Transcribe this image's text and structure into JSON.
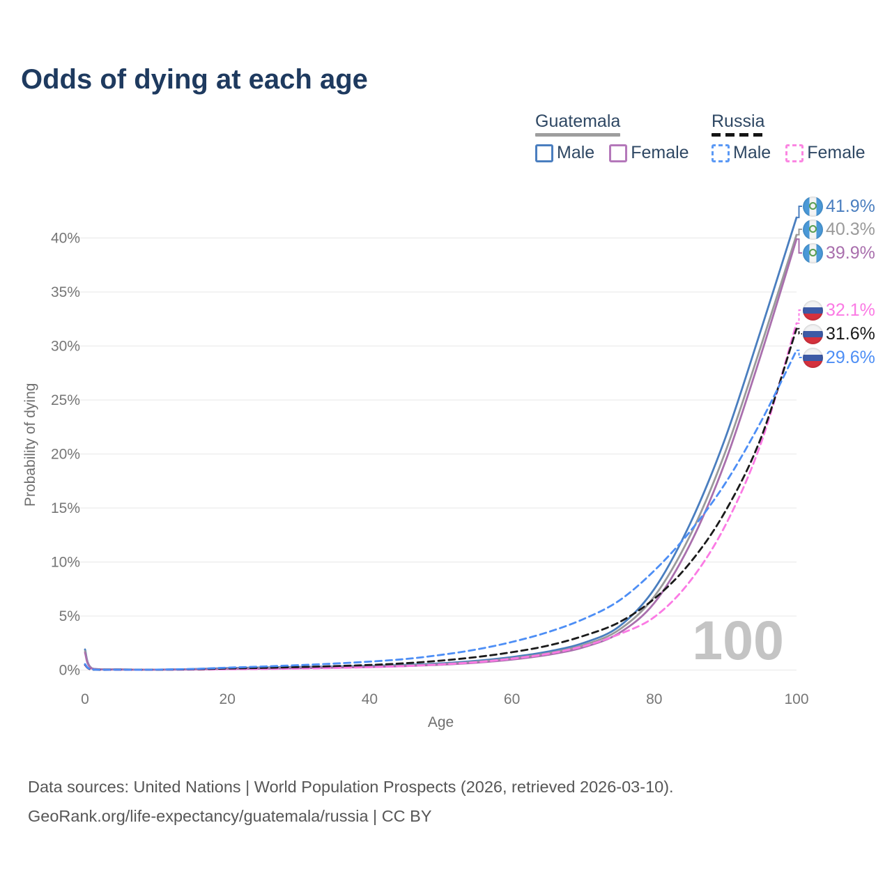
{
  "title": "Odds of dying at each age",
  "legend": {
    "groups": [
      {
        "title": "Guatemala",
        "line_style": "solid",
        "underline_color": "#9e9e9e",
        "items": [
          {
            "label": "Male",
            "color": "#4a7ebf"
          },
          {
            "label": "Female",
            "color": "#b478ba"
          }
        ]
      },
      {
        "title": "Russia",
        "line_style": "dashed",
        "underline_color": "#151515",
        "items": [
          {
            "label": "Male",
            "color": "#5b99f5"
          },
          {
            "label": "Female",
            "color": "#fb86e2"
          }
        ]
      }
    ]
  },
  "chart_data": {
    "type": "line",
    "title": "Odds of dying at each age",
    "xlabel": "Age",
    "ylabel": "Probability of dying",
    "xlim": [
      0,
      100
    ],
    "ylim": [
      0,
      42.5
    ],
    "x_ticks": [
      0,
      20,
      40,
      60,
      80,
      100
    ],
    "y_ticks": [
      0,
      5,
      10,
      15,
      20,
      25,
      30,
      35,
      40
    ],
    "y_tick_format": "percent",
    "grid": "horizontal",
    "legend_position": "top-right",
    "watermark_age": "100",
    "ages": [
      0,
      1,
      5,
      10,
      15,
      20,
      25,
      30,
      35,
      40,
      45,
      50,
      55,
      60,
      65,
      70,
      75,
      80,
      85,
      90,
      95,
      100
    ],
    "series": [
      {
        "id": "guatemala-male",
        "country": "guatemala",
        "sex": "male",
        "color": "#4a7ebf",
        "dash": false,
        "values": [
          1.9,
          0.15,
          0.06,
          0.04,
          0.09,
          0.18,
          0.24,
          0.29,
          0.33,
          0.38,
          0.47,
          0.62,
          0.85,
          1.2,
          1.7,
          2.5,
          4.0,
          7.5,
          13.5,
          21.5,
          31.5,
          41.9
        ],
        "end_label": "41.9%"
      },
      {
        "id": "guatemala-all",
        "country": "guatemala",
        "sex": "all",
        "color": "#9a9a9a",
        "dash": false,
        "values": [
          1.75,
          0.14,
          0.05,
          0.04,
          0.07,
          0.14,
          0.19,
          0.23,
          0.28,
          0.33,
          0.42,
          0.55,
          0.76,
          1.08,
          1.55,
          2.3,
          3.7,
          6.8,
          12.4,
          20.2,
          30.0,
          40.3
        ],
        "end_label": "40.3%"
      },
      {
        "id": "guatemala-female",
        "country": "guatemala",
        "sex": "female",
        "color": "#a96fad",
        "dash": false,
        "values": [
          1.6,
          0.12,
          0.05,
          0.03,
          0.05,
          0.1,
          0.13,
          0.17,
          0.22,
          0.28,
          0.37,
          0.49,
          0.68,
          0.97,
          1.4,
          2.1,
          3.4,
          6.2,
          11.6,
          19.3,
          29.2,
          39.9
        ],
        "end_label": "39.9%"
      },
      {
        "id": "russia-female",
        "country": "russia",
        "sex": "female",
        "color": "#fb7ae4",
        "dash": true,
        "values": [
          0.45,
          0.04,
          0.02,
          0.02,
          0.04,
          0.07,
          0.1,
          0.14,
          0.19,
          0.26,
          0.37,
          0.52,
          0.73,
          1.05,
          1.5,
          2.2,
          3.3,
          4.9,
          8.2,
          13.4,
          21.0,
          32.1
        ],
        "end_label": "32.1%"
      },
      {
        "id": "russia-all",
        "country": "russia",
        "sex": "all",
        "color": "#1a1a1a",
        "dash": true,
        "values": [
          0.5,
          0.04,
          0.03,
          0.03,
          0.07,
          0.14,
          0.2,
          0.27,
          0.36,
          0.47,
          0.63,
          0.87,
          1.2,
          1.65,
          2.25,
          3.15,
          4.4,
          6.6,
          9.9,
          14.7,
          21.5,
          31.6
        ],
        "end_label": "31.6%"
      },
      {
        "id": "russia-male",
        "country": "russia",
        "sex": "male",
        "color": "#4d8ef5",
        "dash": true,
        "values": [
          0.55,
          0.05,
          0.03,
          0.04,
          0.1,
          0.22,
          0.33,
          0.45,
          0.6,
          0.78,
          1.02,
          1.4,
          1.9,
          2.6,
          3.5,
          4.7,
          6.4,
          9.2,
          12.8,
          17.3,
          23.0,
          29.6
        ],
        "end_label": "29.6%"
      }
    ]
  },
  "footer": {
    "line1": "Data sources: United Nations | World Population Prospects (2026, retrieved 2026-03-10).",
    "line2": "GeoRank.org/life-expectancy/guatemala/russia | CC BY"
  }
}
